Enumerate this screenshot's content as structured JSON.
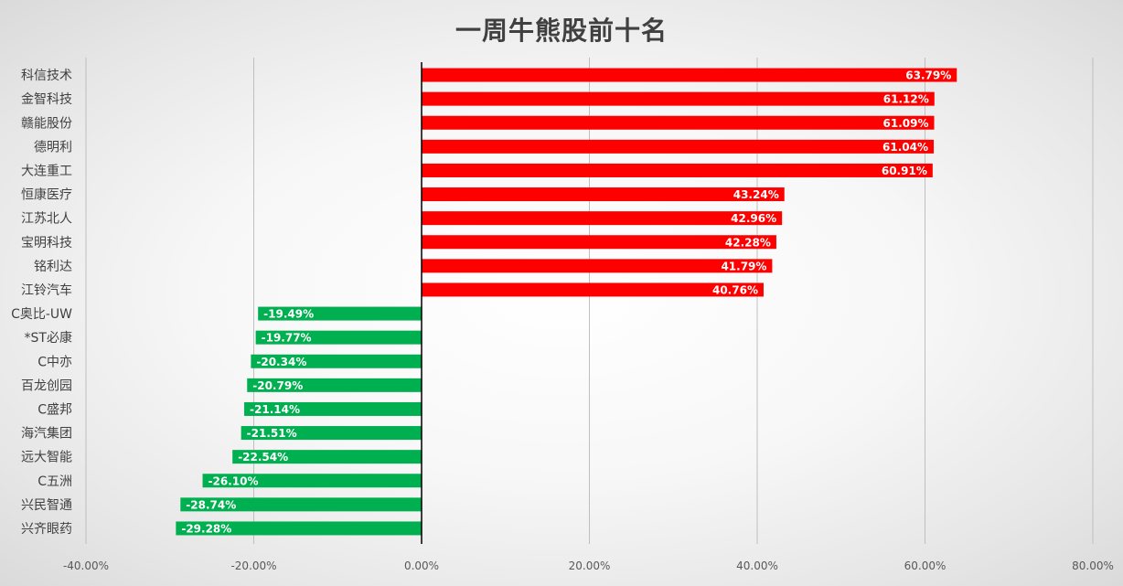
{
  "chart_data": {
    "type": "bar",
    "orientation": "horizontal",
    "title": "一周牛熊股前十名",
    "xlabel": "",
    "ylabel": "",
    "xlim": [
      -0.4,
      0.8
    ],
    "xticks": [
      -0.4,
      -0.2,
      0.0,
      0.2,
      0.4,
      0.6,
      0.8
    ],
    "xtick_labels": [
      "-40.00%",
      "-20.00%",
      "0.00%",
      "20.00%",
      "40.00%",
      "60.00%",
      "80.00%"
    ],
    "grid": "vertical",
    "legend": "none",
    "positive_color": "#FF0000",
    "negative_color": "#00B050",
    "categories": [
      "科信技术",
      "金智科技",
      "赣能股份",
      "德明利",
      "大连重工",
      "恒康医疗",
      "江苏北人",
      "宝明科技",
      "铭利达",
      "江铃汽车",
      "C奥比-UW",
      "*ST必康",
      "C中亦",
      "百龙创园",
      "C盛邦",
      "海汽集团",
      "远大智能",
      "C五洲",
      "兴民智通",
      "兴齐眼药"
    ],
    "values": [
      0.6379,
      0.6112,
      0.6109,
      0.6104,
      0.6091,
      0.4324,
      0.4296,
      0.4228,
      0.4179,
      0.4076,
      -0.1949,
      -0.1977,
      -0.2034,
      -0.2079,
      -0.2114,
      -0.2151,
      -0.2254,
      -0.261,
      -0.2874,
      -0.2928
    ],
    "value_labels": [
      "63.79%",
      "61.12%",
      "61.09%",
      "61.04%",
      "60.91%",
      "43.24%",
      "42.96%",
      "42.28%",
      "41.79%",
      "40.76%",
      "-19.49%",
      "-19.77%",
      "-20.34%",
      "-20.79%",
      "-21.14%",
      "-21.51%",
      "-22.54%",
      "-26.10%",
      "-28.74%",
      "-29.28%"
    ]
  }
}
